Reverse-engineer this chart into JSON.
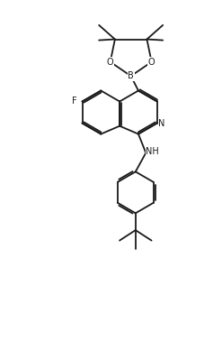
{
  "background": "#ffffff",
  "line_color": "#1a1a1a",
  "line_width": 1.3,
  "font_size": 7.0,
  "figsize": [
    2.37,
    3.88
  ],
  "dpi": 100,
  "xlim": [
    -0.5,
    10.5
  ],
  "ylim": [
    -1.0,
    17.5
  ]
}
